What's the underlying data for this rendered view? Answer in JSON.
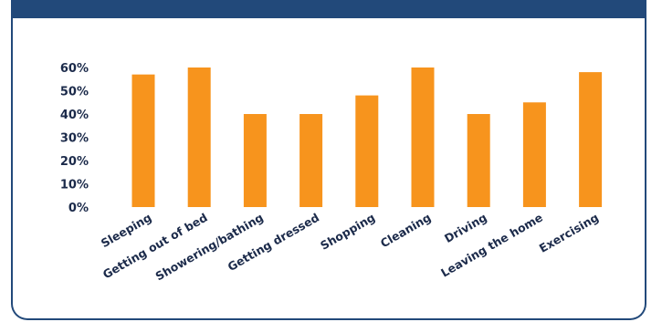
{
  "colors": {
    "header": "#22497a",
    "bar": "#f7941d",
    "text": "#1b2a4a"
  },
  "chart_data": {
    "type": "bar",
    "title": "",
    "xlabel": "",
    "ylabel": "",
    "ylim": [
      0,
      60
    ],
    "yticks": [
      0,
      10,
      20,
      30,
      40,
      50,
      60
    ],
    "ytick_labels": [
      "0%",
      "10%",
      "20%",
      "30%",
      "40%",
      "50%",
      "60%"
    ],
    "grid": false,
    "legend": "none",
    "categories": [
      "Sleeping",
      "Getting out of bed",
      "Showering/bathing",
      "Getting dressed",
      "Shopping",
      "Cleaning",
      "Driving",
      "Leaving the home",
      "Exercising"
    ],
    "values": [
      57,
      60,
      40,
      40,
      48,
      60,
      40,
      45,
      58
    ]
  }
}
